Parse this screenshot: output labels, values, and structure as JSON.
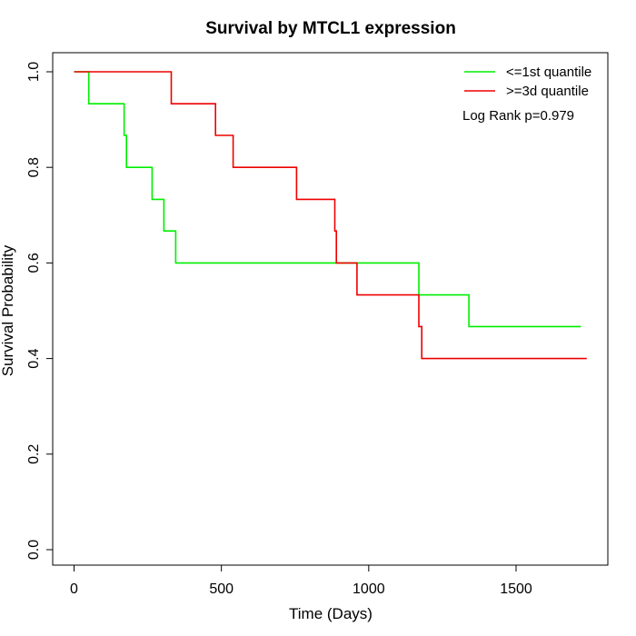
{
  "chart_data": {
    "type": "line",
    "subtype": "kaplan-meier step",
    "title": "Survival by MTCL1 expression",
    "xlabel": "Time (Days)",
    "ylabel": "Survival Probability",
    "xlim": [
      0,
      1800
    ],
    "ylim": [
      0,
      1
    ],
    "x_ticks": [
      0,
      500,
      1000,
      1500
    ],
    "x_tick_labels": [
      "0",
      "500",
      "1000",
      "1500"
    ],
    "y_ticks": [
      0,
      0.2,
      0.4,
      0.6,
      0.8,
      1
    ],
    "y_tick_labels": [
      "0.0",
      "0.2",
      "0.4",
      "0.6",
      "0.8",
      "1.0"
    ],
    "grid": false,
    "legend_position": "top-right",
    "annotation": "Log Rank p=0.979",
    "series": [
      {
        "name": "<=1st quantile",
        "color": "#00ee00",
        "x": [
          0,
          50,
          50,
          170,
          170,
          178,
          178,
          265,
          265,
          305,
          305,
          345,
          345,
          1170,
          1170,
          1340,
          1340,
          1720
        ],
        "y": [
          1.0,
          1.0,
          0.933,
          0.933,
          0.867,
          0.867,
          0.8,
          0.8,
          0.733,
          0.733,
          0.667,
          0.667,
          0.6,
          0.6,
          0.533,
          0.533,
          0.467,
          0.467
        ]
      },
      {
        "name": ">=3d quantile",
        "color": "#ee0000",
        "x": [
          0,
          330,
          330,
          480,
          480,
          540,
          540,
          755,
          755,
          885,
          885,
          890,
          890,
          960,
          960,
          1170,
          1170,
          1180,
          1180,
          1740
        ],
        "y": [
          1.0,
          1.0,
          0.933,
          0.933,
          0.867,
          0.867,
          0.8,
          0.8,
          0.733,
          0.733,
          0.667,
          0.667,
          0.6,
          0.6,
          0.533,
          0.533,
          0.467,
          0.467,
          0.4,
          0.4
        ]
      }
    ]
  }
}
